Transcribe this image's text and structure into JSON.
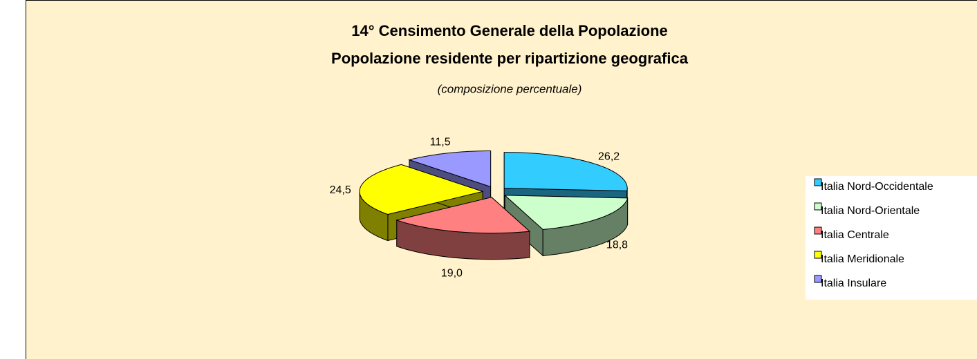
{
  "chart_data": {
    "type": "pie",
    "title": [
      "14° Censimento Generale della Popolazione",
      "Popolazione residente per ripartizione geografica"
    ],
    "subtitle": "(composizione percentuale)",
    "categories": [
      "Italia Nord-Occidentale",
      "Italia Nord-Orientale",
      "Italia Centrale",
      "Italia Meridionale",
      "Italia Insulare"
    ],
    "values": [
      26.2,
      18.8,
      19.0,
      24.5,
      11.5
    ],
    "value_labels": [
      "26,2",
      "18,8",
      "19,0",
      "24,5",
      "11,5"
    ],
    "colors": [
      "#33CCFF",
      "#CCFFCC",
      "#FF8080",
      "#FFFF00",
      "#9999FF"
    ],
    "three_d": true,
    "exploded": true,
    "legend": "right"
  }
}
